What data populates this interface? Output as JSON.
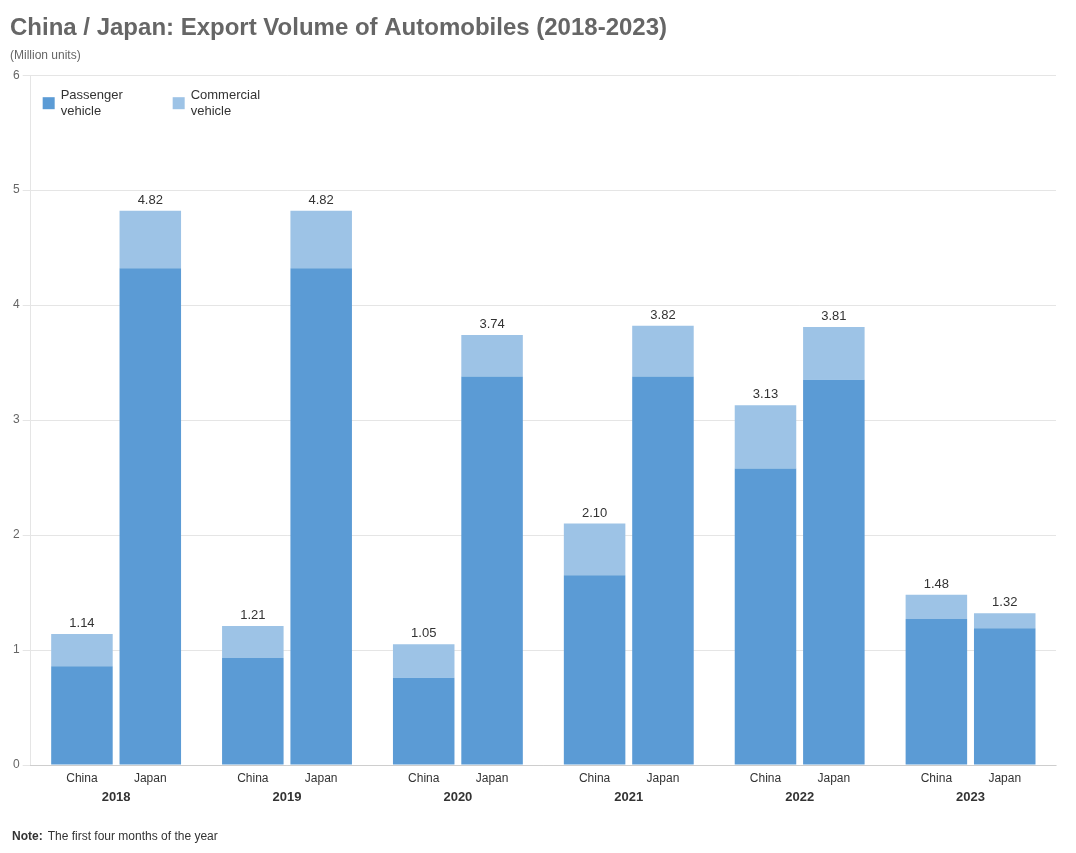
{
  "chart_data": {
    "type": "bar",
    "stacked": true,
    "title": "China / Japan: Export Volume of Automobiles (2018-2023)",
    "y_label": "(Million units)",
    "note": {
      "label": "Note:",
      "text": "The first four months of the year"
    },
    "categories": [
      "2018",
      "2019",
      "2020",
      "2021",
      "2022",
      "2023"
    ],
    "bars": [
      "China",
      "Japan"
    ],
    "series": [
      {
        "name": "Passenger\nvehicle",
        "color": "#5b9bd5",
        "values": {
          "China": [
            0.86,
            0.93,
            0.76,
            1.65,
            2.58,
            1.27
          ],
          "Japan": [
            4.32,
            4.32,
            3.38,
            3.38,
            3.35,
            1.19
          ]
        }
      },
      {
        "name": "Commercial\nvehicle",
        "color": "#9dc3e6",
        "values": {
          "China": [
            0.28,
            0.28,
            0.29,
            0.45,
            0.55,
            0.21
          ],
          "Japan": [
            0.5,
            0.5,
            0.36,
            0.44,
            0.46,
            0.13
          ]
        }
      }
    ],
    "totals": {
      "China": {
        "values": [
          1.14,
          1.21,
          1.05,
          2.1,
          3.13,
          1.48
        ],
        "value_labels": [
          "1.14",
          "1.21",
          "1.05",
          "2.10",
          "3.13",
          "1.48"
        ]
      },
      "Japan": {
        "values": [
          4.82,
          4.82,
          3.74,
          3.82,
          3.81,
          1.32
        ],
        "value_labels": [
          "4.82",
          "4.82",
          "3.74",
          "3.82",
          "3.81",
          "1.32"
        ]
      }
    },
    "data_labels": true,
    "ylim": [
      0,
      6
    ],
    "yticks": [
      0,
      1,
      2,
      3,
      4,
      5,
      6
    ],
    "grid": true
  }
}
